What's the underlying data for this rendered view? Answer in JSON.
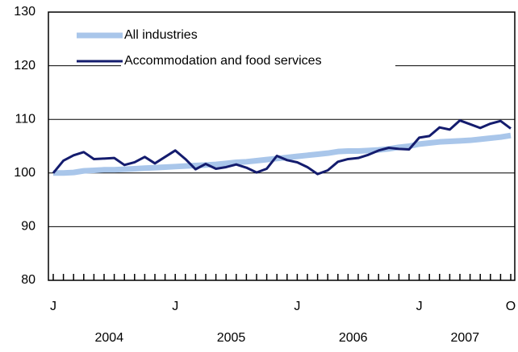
{
  "chart_data": {
    "type": "line",
    "categories": [
      "J",
      null,
      null,
      null,
      null,
      null,
      null,
      null,
      null,
      null,
      null,
      null,
      "J",
      null,
      null,
      null,
      null,
      null,
      null,
      null,
      null,
      null,
      null,
      null,
      "J",
      null,
      null,
      null,
      null,
      null,
      null,
      null,
      null,
      null,
      null,
      null,
      "J",
      null,
      null,
      null,
      null,
      null,
      null,
      null,
      null,
      "O"
    ],
    "year_labels": [
      "2004",
      "2005",
      "2006",
      "2007"
    ],
    "series": [
      {
        "name": "All industries",
        "color": "#a9c6ea",
        "values": [
          100.0,
          100.0,
          100.1,
          100.4,
          100.5,
          100.6,
          100.6,
          100.7,
          100.8,
          100.9,
          101.0,
          101.1,
          101.2,
          101.3,
          101.4,
          101.5,
          101.6,
          101.8,
          102.0,
          102.1,
          102.3,
          102.5,
          102.7,
          102.9,
          103.1,
          103.3,
          103.5,
          103.7,
          104.0,
          104.1,
          104.1,
          104.2,
          104.3,
          104.5,
          104.8,
          105.0,
          105.4,
          105.6,
          105.8,
          105.9,
          106.0,
          106.1,
          106.3,
          106.5,
          106.7,
          107.0
        ]
      },
      {
        "name": "Accommodation and food services",
        "color": "#141c6e",
        "values": [
          100.0,
          102.3,
          103.3,
          103.9,
          102.6,
          102.7,
          102.8,
          101.5,
          102.0,
          103.0,
          101.8,
          103.0,
          104.2,
          102.6,
          100.7,
          101.7,
          100.8,
          101.1,
          101.6,
          101.0,
          100.1,
          100.8,
          103.2,
          102.4,
          102.0,
          101.1,
          99.8,
          100.5,
          102.1,
          102.6,
          102.8,
          103.4,
          104.2,
          104.7,
          104.5,
          104.4,
          106.6,
          106.9,
          108.5,
          108.1,
          109.8,
          109.1,
          108.4,
          109.2,
          109.7,
          108.3
        ]
      }
    ],
    "ylim": [
      80,
      130
    ],
    "yticks": [
      80,
      90,
      100,
      110,
      120,
      130
    ],
    "grid": true
  }
}
